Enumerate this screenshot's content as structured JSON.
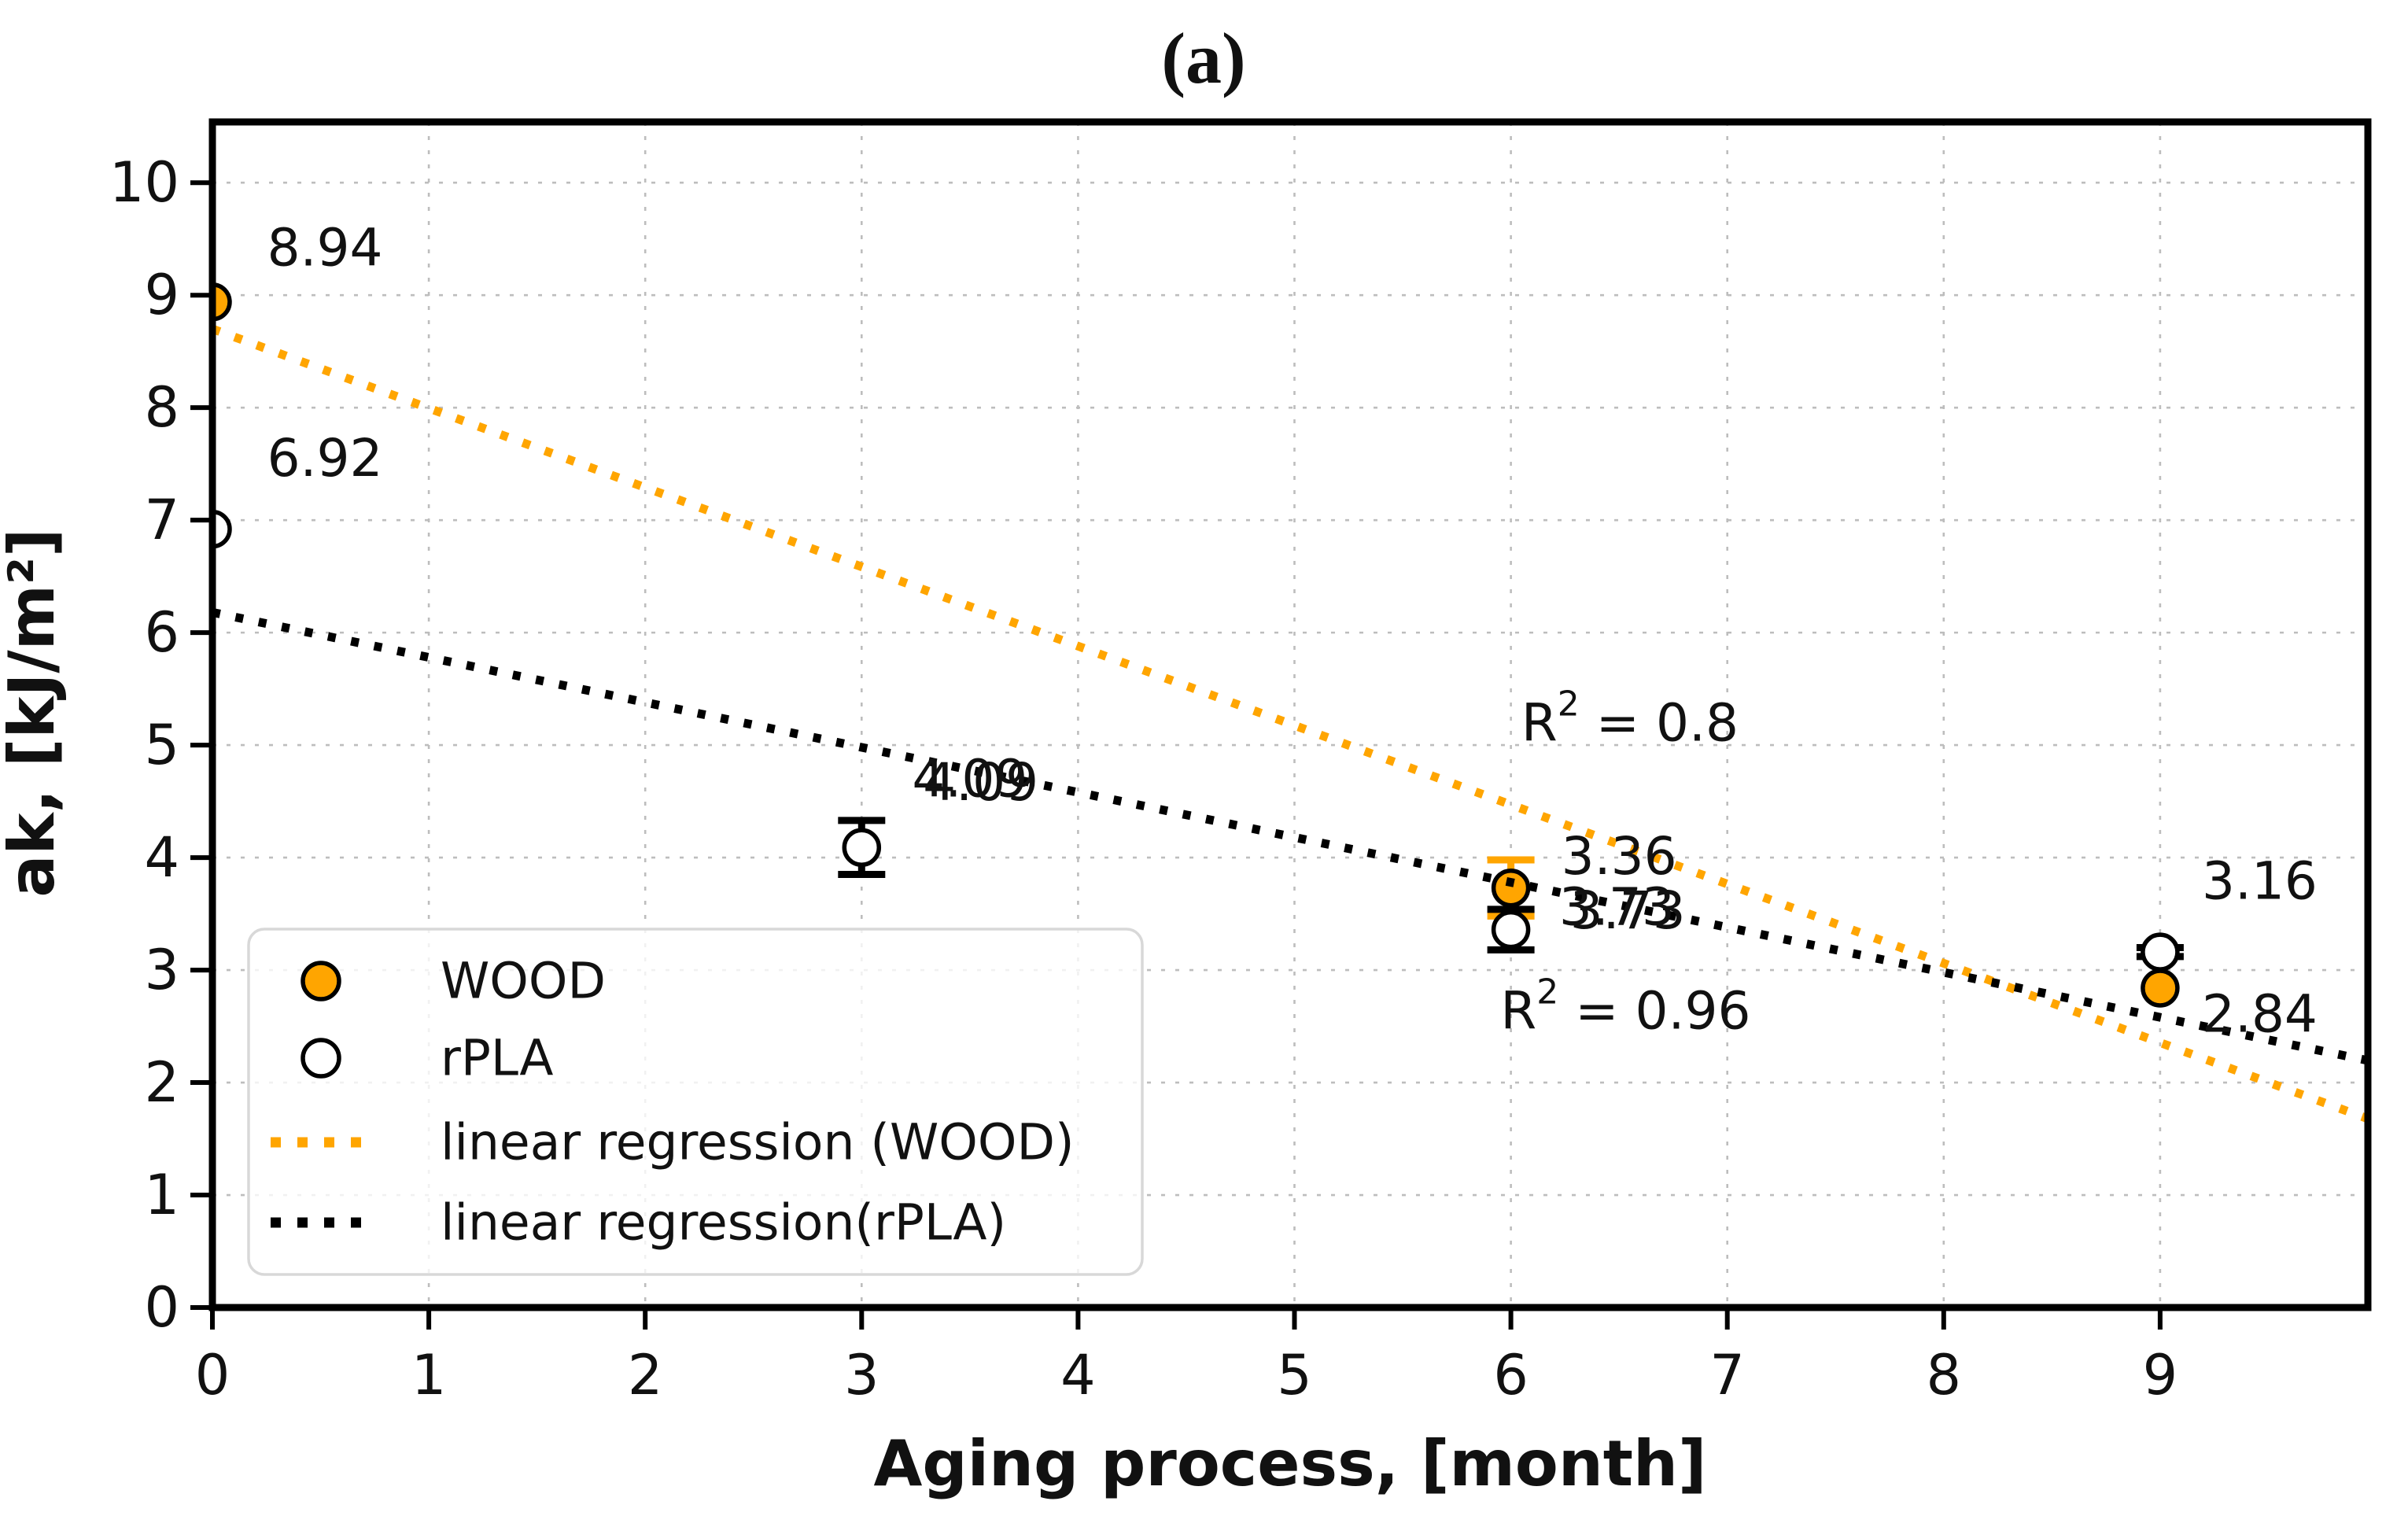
{
  "chart_data": {
    "type": "scatter",
    "title": "(a)",
    "xlabel": "Aging process, [month]",
    "ylabel": "ak, [kJ/m²]",
    "xlim": [
      0,
      9.96
    ],
    "ylim": [
      0,
      10.54
    ],
    "grid": true,
    "xticks": [
      "0",
      "1",
      "2",
      "3",
      "4",
      "5",
      "6",
      "7",
      "8",
      "9"
    ],
    "yticks": [
      "0",
      "1",
      "2",
      "3",
      "4",
      "5",
      "6",
      "7",
      "8",
      "9",
      "10"
    ],
    "colors": {
      "wood_orange": "#ffa500",
      "rpla_black": "#000000",
      "grid_gray": "#bdbdbd",
      "legend_border": "#d8d8d8"
    },
    "series": [
      {
        "name": "WOOD",
        "marker": "filled-circle",
        "fill_color": "#ffa500",
        "edge_color": "#000000",
        "err_color": "#ffa500",
        "points": [
          {
            "x": 0,
            "y": 8.94,
            "err": 0
          },
          {
            "x": 6,
            "y": 3.73,
            "err": 0.25
          },
          {
            "x": 9,
            "y": 2.84,
            "err": 0
          }
        ]
      },
      {
        "name": "rPLA",
        "marker": "open-circle",
        "fill_color": "#ffffff",
        "edge_color": "#000000",
        "err_color": "#000000",
        "points": [
          {
            "x": 0,
            "y": 6.92,
            "err": 0
          },
          {
            "x": 3,
            "y": 4.09,
            "err": 0.24
          },
          {
            "x": 6,
            "y": 3.36,
            "err": 0.18
          },
          {
            "x": 9,
            "y": 3.16,
            "err": 0.04
          }
        ]
      }
    ],
    "regression_lines": [
      {
        "name": "linear regression (WOOD)",
        "color": "#ffa500",
        "slope": -0.705,
        "intercept": 8.7
      },
      {
        "name": "linear regression(rPLA)",
        "color": "#000000",
        "slope": -0.4,
        "intercept": 6.18
      }
    ],
    "annotations": [
      {
        "text": "8.94",
        "x": 0.52,
        "y": 9.42
      },
      {
        "text": "6.92",
        "x": 0.52,
        "y": 7.55
      },
      {
        "text": "4.09",
        "x": 3.5,
        "y": 4.7
      },
      {
        "text": "4.09",
        "x": 3.55,
        "y": 4.67
      },
      {
        "text": "3.36",
        "x": 6.5,
        "y": 4.01
      },
      {
        "text": "3.73",
        "x": 6.49,
        "y": 3.56
      },
      {
        "text": "3.73",
        "x": 6.54,
        "y": 3.53
      },
      {
        "text": "3.16",
        "x": 9.46,
        "y": 3.79
      },
      {
        "text": "2.84",
        "x": 9.46,
        "y": 2.61
      },
      {
        "text": "R² = 0.8",
        "x": 6.55,
        "y": 5.2
      },
      {
        "text": "R² = 0.96",
        "x": 6.53,
        "y": 2.64
      }
    ],
    "legend": {
      "position": "lower left",
      "entries": [
        {
          "label": "WOOD",
          "type": "marker",
          "fill": "#ffa500",
          "edge": "#000000"
        },
        {
          "label": "rPLA",
          "type": "marker",
          "fill": "#ffffff",
          "edge": "#000000"
        },
        {
          "label": "linear regression (WOOD)",
          "type": "dotted-line",
          "color": "#ffa500"
        },
        {
          "label": "linear regression(rPLA)",
          "type": "dotted-line",
          "color": "#000000"
        }
      ]
    }
  }
}
